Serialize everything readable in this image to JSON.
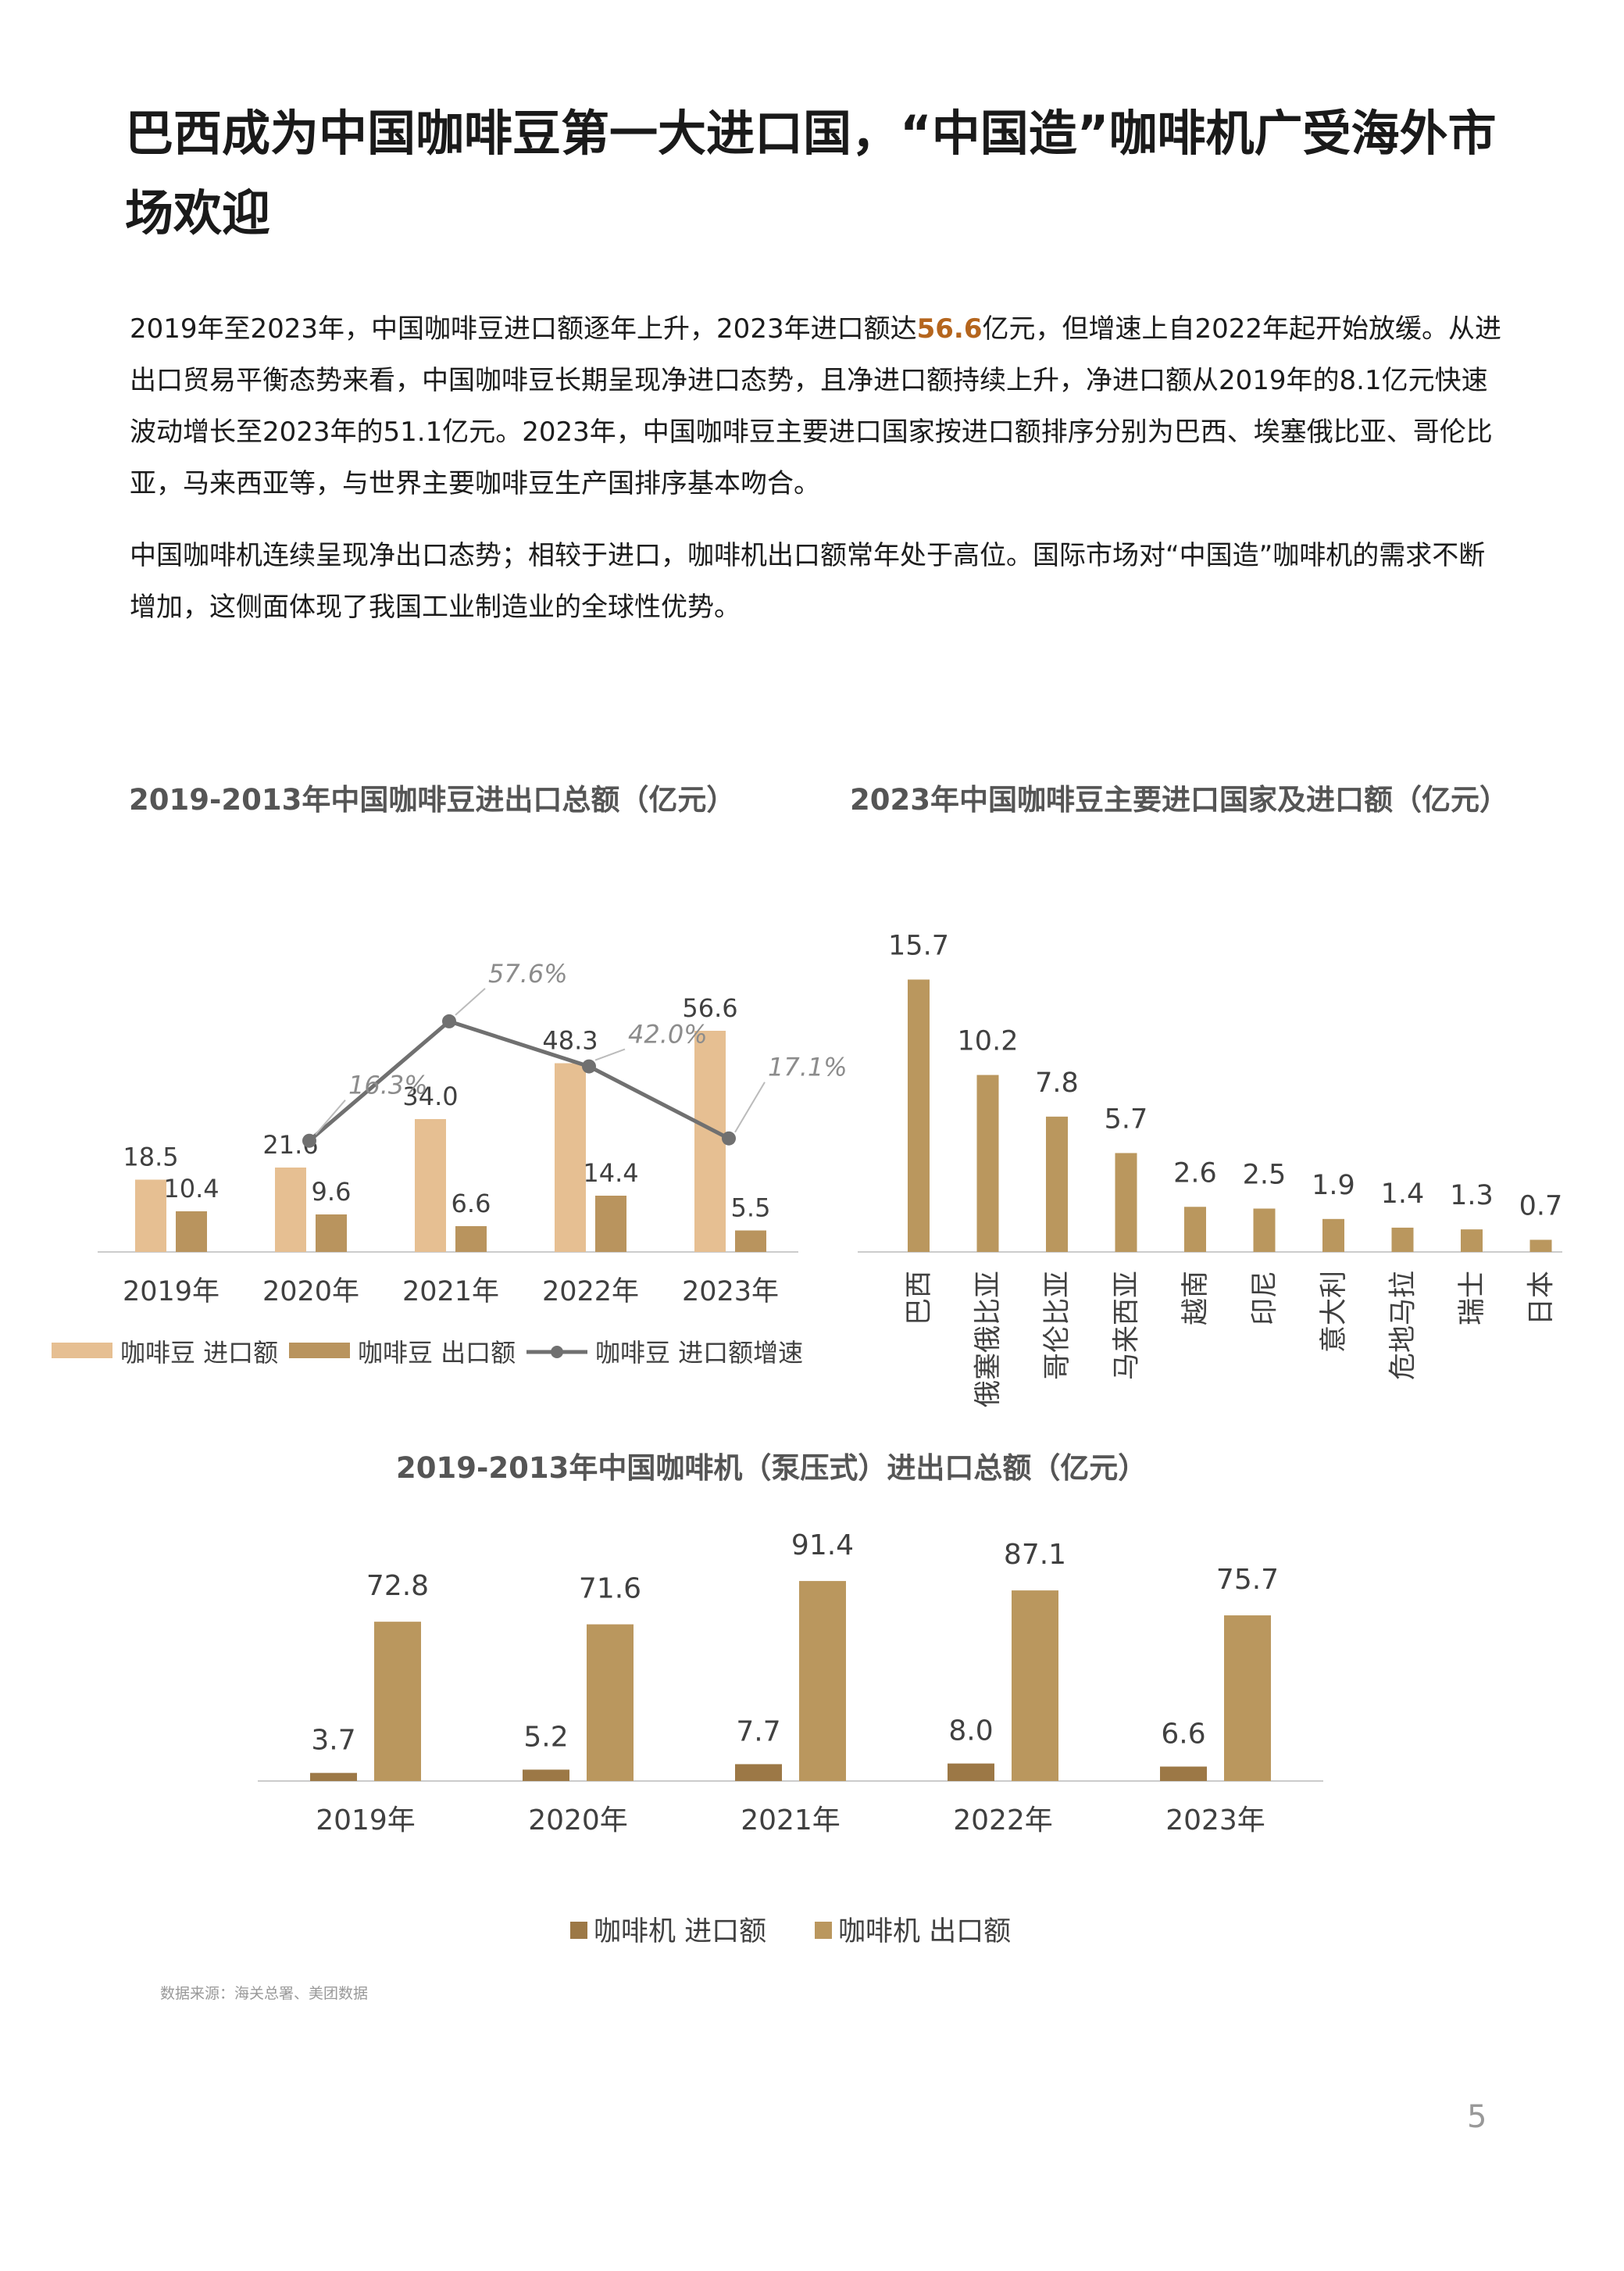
{
  "page": {
    "title": "巴西成为中国咖啡豆第一大进口国，“中国造”咖啡机广受海外市场欢迎",
    "para1_pre": "2019年至2023年，中国咖啡豆进口额逐年上升，2023年进口额达",
    "para1_highlight": "56.6",
    "para1_post": "亿元，但增速上自2022年起开始放缓。从进出口贸易平衡态势来看，中国咖啡豆长期呈现净进口态势，且净进口额持续上升，净进口额从2019年的8.1亿元快速波动增长至2023年的51.1亿元。2023年，中国咖啡豆主要进口国家按进口额排序分别为巴西、埃塞俄比亚、哥伦比亚，马来西亚等，与世界主要咖啡豆生产国排序基本吻合。",
    "para2": "中国咖啡机连续呈现净出口态势；相较于进口，咖啡机出口额常年处于高位。国际市场对“中国造”咖啡机的需求不断增加，这侧面体现了我国工业制造业的全球性优势。",
    "source": "数据来源：海关总署、美团数据",
    "page_number": "5",
    "colors": {
      "highlight": "#b5651d",
      "light_tan": "#e6bf92",
      "dark_tan": "#b9945e",
      "bar_tan": "#ba975e",
      "line_gray": "#707070"
    }
  },
  "chart_data": [
    {
      "type": "bar",
      "title": "2019-2013年中国咖啡豆进出口总额（亿元）",
      "categories": [
        "2019年",
        "2020年",
        "2021年",
        "2022年",
        "2023年"
      ],
      "series": [
        {
          "name": "咖啡豆 进口额",
          "values": [
            18.5,
            21.6,
            34.0,
            48.3,
            56.6
          ],
          "labels": [
            "18.5",
            "21.6",
            "34.0",
            "48.3",
            "56.6"
          ],
          "color": "#e6bf92"
        },
        {
          "name": "咖啡豆 出口额",
          "values": [
            10.4,
            9.6,
            6.6,
            14.4,
            5.5
          ],
          "labels": [
            "10.4",
            "9.6",
            "6.6",
            "14.4",
            "5.5"
          ],
          "color": "#b9945e"
        }
      ],
      "line": {
        "name": "咖啡豆 进口额增速",
        "categories": [
          "2020年",
          "2021年",
          "2022年",
          "2023年"
        ],
        "values": [
          16.3,
          57.6,
          42.0,
          17.1
        ],
        "labels": [
          "16.3%",
          "57.6%",
          "42.0%",
          "17.1%"
        ],
        "color": "#707070"
      },
      "ylim": [
        0,
        60
      ],
      "legend": "bottom"
    },
    {
      "type": "bar",
      "title": "2023年中国咖啡豆主要进口国家及进口额（亿元）",
      "categories": [
        "巴西",
        "俄塞俄比亚",
        "哥伦比亚",
        "马来西亚",
        "越南",
        "印尼",
        "意大利",
        "危地马拉",
        "瑞士",
        "日本"
      ],
      "values": [
        15.7,
        10.2,
        7.8,
        5.7,
        2.6,
        2.5,
        1.9,
        1.4,
        1.3,
        0.7
      ],
      "labels": [
        "15.7",
        "10.2",
        "7.8",
        "5.7",
        "2.6",
        "2.5",
        "1.9",
        "1.4",
        "1.3",
        "0.7"
      ],
      "ylim": [
        0,
        16
      ],
      "color": "#ba975e"
    },
    {
      "type": "bar",
      "title": "2019-2013年中国咖啡机（泵压式）进出口总额（亿元）",
      "categories": [
        "2019年",
        "2020年",
        "2021年",
        "2022年",
        "2023年"
      ],
      "series": [
        {
          "name": "咖啡机 进口额",
          "values": [
            3.7,
            5.2,
            7.7,
            8.0,
            6.6
          ],
          "labels": [
            "3.7",
            "5.2",
            "7.7",
            "8.0",
            "6.6"
          ],
          "color": "#9c7846"
        },
        {
          "name": "咖啡机 出口额",
          "values": [
            72.8,
            71.6,
            91.4,
            87.1,
            75.7
          ],
          "labels": [
            "72.8",
            "71.6",
            "91.4",
            "87.1",
            "75.7"
          ],
          "color": "#ba975e"
        }
      ],
      "ylim": [
        0,
        100
      ],
      "legend": "bottom"
    }
  ]
}
